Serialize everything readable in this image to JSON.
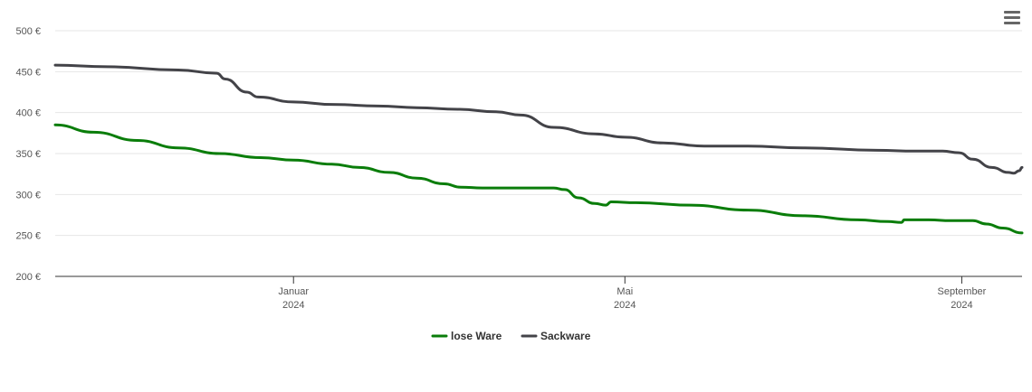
{
  "chart_data": {
    "type": "line",
    "yticks": [
      200,
      250,
      300,
      350,
      400,
      450,
      500
    ],
    "ytick_suffix": " €",
    "ylim": [
      200,
      500
    ],
    "xlim": [
      "2023-10-06",
      "2024-09-23"
    ],
    "xticks": [
      {
        "date": "2024-01-01",
        "month": "Januar",
        "year": "2024"
      },
      {
        "date": "2024-05-01",
        "month": "Mai",
        "year": "2024"
      },
      {
        "date": "2024-09-01",
        "month": "September",
        "year": "2024"
      }
    ],
    "grid": true,
    "legend_position": "bottom-center",
    "series": [
      {
        "name": "lose Ware",
        "color": "#0a7d0a",
        "points": [
          [
            "2023-10-06",
            385
          ],
          [
            "2023-10-20",
            376
          ],
          [
            "2023-11-05",
            366
          ],
          [
            "2023-11-20",
            357
          ],
          [
            "2023-12-05",
            350
          ],
          [
            "2023-12-20",
            345
          ],
          [
            "2024-01-01",
            342
          ],
          [
            "2024-01-15",
            337
          ],
          [
            "2024-01-25",
            333
          ],
          [
            "2024-02-05",
            327
          ],
          [
            "2024-02-15",
            320
          ],
          [
            "2024-02-25",
            313
          ],
          [
            "2024-03-02",
            309
          ],
          [
            "2024-03-10",
            308
          ],
          [
            "2024-03-25",
            308
          ],
          [
            "2024-04-05",
            308
          ],
          [
            "2024-04-09",
            306
          ],
          [
            "2024-04-14",
            296
          ],
          [
            "2024-04-20",
            289
          ],
          [
            "2024-04-24",
            287
          ],
          [
            "2024-04-26",
            291
          ],
          [
            "2024-05-05",
            290
          ],
          [
            "2024-05-25",
            287
          ],
          [
            "2024-06-15",
            281
          ],
          [
            "2024-07-05",
            274
          ],
          [
            "2024-07-25",
            269
          ],
          [
            "2024-08-05",
            267
          ],
          [
            "2024-08-10",
            266
          ],
          [
            "2024-08-11",
            269
          ],
          [
            "2024-08-20",
            269
          ],
          [
            "2024-08-28",
            268
          ],
          [
            "2024-09-01",
            268
          ],
          [
            "2024-09-05",
            268
          ],
          [
            "2024-09-10",
            264
          ],
          [
            "2024-09-16",
            259
          ],
          [
            "2024-09-23",
            253
          ]
        ]
      },
      {
        "name": "Sackware",
        "color": "#434348",
        "points": [
          [
            "2023-10-06",
            458
          ],
          [
            "2023-10-25",
            456
          ],
          [
            "2023-11-20",
            452
          ],
          [
            "2023-12-04",
            448
          ],
          [
            "2023-12-07",
            441
          ],
          [
            "2023-12-15",
            425
          ],
          [
            "2023-12-19",
            419
          ],
          [
            "2024-01-01",
            413
          ],
          [
            "2024-01-15",
            410
          ],
          [
            "2024-02-01",
            408
          ],
          [
            "2024-02-15",
            406
          ],
          [
            "2024-03-01",
            404
          ],
          [
            "2024-03-15",
            401
          ],
          [
            "2024-03-24",
            397
          ],
          [
            "2024-04-05",
            382
          ],
          [
            "2024-04-20",
            374
          ],
          [
            "2024-05-01",
            370
          ],
          [
            "2024-05-15",
            363
          ],
          [
            "2024-05-30",
            359
          ],
          [
            "2024-06-15",
            359
          ],
          [
            "2024-07-05",
            357
          ],
          [
            "2024-08-01",
            354
          ],
          [
            "2024-08-15",
            353
          ],
          [
            "2024-08-25",
            353
          ],
          [
            "2024-08-31",
            351
          ],
          [
            "2024-09-05",
            343
          ],
          [
            "2024-09-12",
            333
          ],
          [
            "2024-09-18",
            327
          ],
          [
            "2024-09-20",
            326
          ],
          [
            "2024-09-22",
            329
          ],
          [
            "2024-09-23",
            333
          ]
        ]
      }
    ]
  },
  "menu": {
    "icon": "hamburger-menu-icon"
  }
}
